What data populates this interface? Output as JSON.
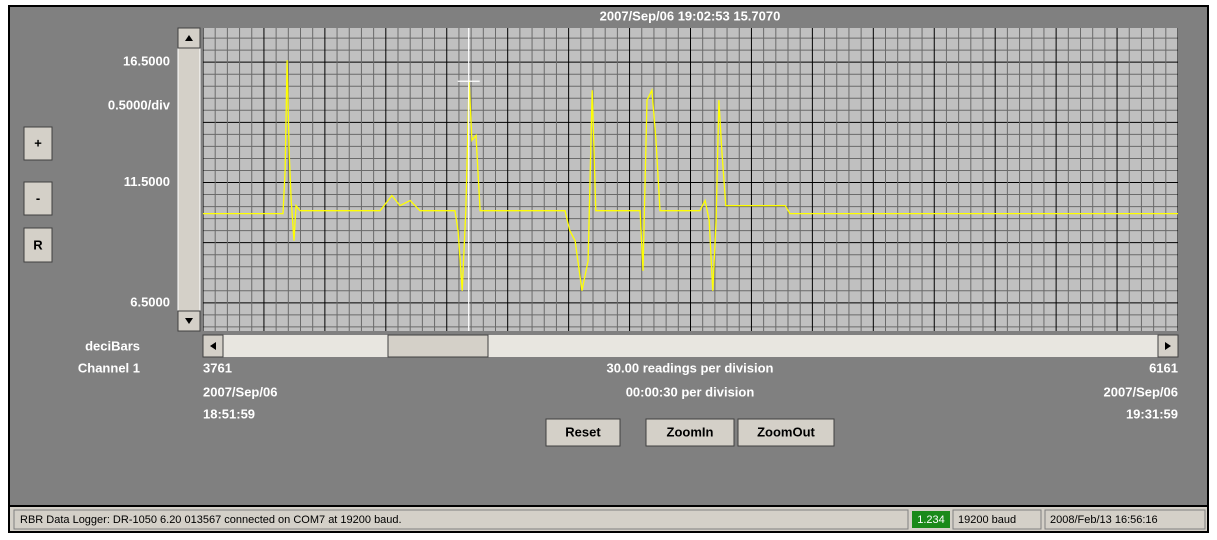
{
  "chart_data": {
    "type": "line",
    "cursor": {
      "label": "2007/Sep/06 19:02:53  15.7070",
      "x": 4415,
      "y": 15.707
    },
    "y_per_div": {
      "value": 0.5,
      "label": "0.5000/div"
    },
    "x_per_div": {
      "value": 30,
      "label": "30.00 readings per division"
    },
    "time_per_div": "00:00:30 per division",
    "ylabel": "deciBars",
    "channel": "Channel  1",
    "x_start": {
      "date": "2007/Sep/06",
      "time": "18:51:59"
    },
    "x_end": {
      "date": "2007/Sep/06",
      "time": "19:31:59"
    },
    "xlim": [
      3761,
      6161
    ],
    "xticks": [
      3761,
      6161
    ],
    "ylim": [
      5.33,
      17.92
    ],
    "yticks": [
      {
        "value": 16.5,
        "label": "16.5000"
      },
      {
        "value": 11.5,
        "label": "11.5000"
      },
      {
        "value": 6.5,
        "label": "6.5000"
      }
    ],
    "grid": true,
    "x": [
      3761,
      3958,
      3963,
      3968,
      3973,
      3978,
      3985,
      3990,
      4000,
      4197,
      4226,
      4246,
      4271,
      4295,
      4381,
      4389,
      4399,
      4408,
      4416,
      4423,
      4433,
      4443,
      4652,
      4664,
      4677,
      4694,
      4709,
      4719,
      4728,
      4837,
      4844,
      4854,
      4866,
      4876,
      4886,
      4984,
      4997,
      5007,
      5016,
      5024,
      5031,
      5038,
      5048,
      5194,
      5206,
      6161
    ],
    "series": [
      {
        "color": "#ffff00",
        "values": [
          10.21,
          10.21,
          12.0,
          16.58,
          12.83,
          10.75,
          9.08,
          10.54,
          10.33,
          10.33,
          10.96,
          10.54,
          10.75,
          10.33,
          10.33,
          9.5,
          7.0,
          10.33,
          15.75,
          13.25,
          13.46,
          10.33,
          10.33,
          9.5,
          9.08,
          7.0,
          8.25,
          15.33,
          10.33,
          10.33,
          7.83,
          14.92,
          15.33,
          13.25,
          10.33,
          10.33,
          10.75,
          9.92,
          7.0,
          9.92,
          14.92,
          12.83,
          10.54,
          10.54,
          10.21,
          10.21
        ]
      }
    ]
  },
  "controls": {
    "zoom_in": "+",
    "zoom_out": "-",
    "reset_y": "R",
    "reset": "Reset",
    "zoomin": "ZoomIn",
    "zoomout": "ZoomOut"
  },
  "status_bar": {
    "message": "RBR Data Logger: DR-1050  6.20 013567 connected on COM7 at 19200 baud.",
    "reading": "1.234",
    "baud": "19200 baud",
    "clock": "2008/Feb/13 16:56:16"
  }
}
